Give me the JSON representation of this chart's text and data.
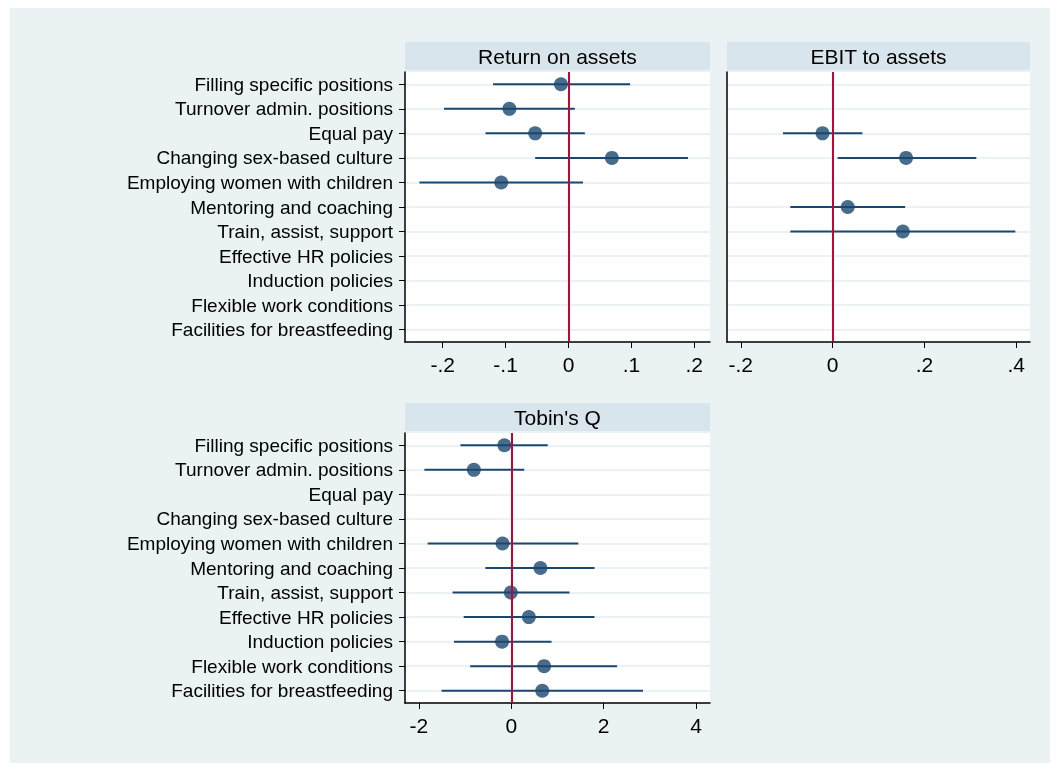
{
  "chart_data": [
    {
      "type": "scatter",
      "title": "Return on assets",
      "orientation": "horizontal",
      "color": "#1a476f",
      "marker": "circle",
      "grid": "y",
      "categories": [
        "Filling specific positions",
        "Turnover admin. positions",
        "Equal pay",
        "Changing sex-based culture",
        "Employing women with children",
        "Mentoring and coaching",
        "Train, assist, support",
        "Effective HR policies",
        "Induction policies",
        "Flexible work conditions",
        "Facilities for breastfeeding"
      ],
      "values": [
        -0.012,
        -0.094,
        -0.053,
        0.069,
        -0.107,
        null,
        null,
        null,
        null,
        null,
        null
      ],
      "errors": [
        [
          -0.12,
          0.098
        ],
        [
          -0.198,
          0.01
        ],
        [
          -0.132,
          0.026
        ],
        [
          -0.053,
          0.19
        ],
        [
          -0.237,
          0.023
        ],
        null,
        null,
        null,
        null,
        null,
        null
      ],
      "xlim": [
        -0.26,
        0.225
      ],
      "xticks": [
        {
          "value": -0.2,
          "label": "-.2"
        },
        {
          "value": -0.1,
          "label": "-.1"
        },
        0,
        {
          "value": 0.1,
          "label": ".1"
        },
        {
          "value": 0.2,
          "label": ".2"
        }
      ],
      "ref_lines": [
        {
          "axis": "x",
          "value": 0,
          "color": "#c10534"
        }
      ]
    },
    {
      "type": "scatter",
      "title": "EBIT to assets",
      "orientation": "horizontal",
      "color": "#1a476f",
      "marker": "circle",
      "grid": "y",
      "tick_labels": "x",
      "categories": [
        null,
        null,
        null,
        null,
        null,
        null,
        null,
        null,
        null,
        null,
        null
      ],
      "values": [
        null,
        null,
        -0.022,
        0.16,
        null,
        0.033,
        0.153,
        null,
        null,
        null,
        null
      ],
      "errors": [
        null,
        null,
        [
          -0.108,
          0.065
        ],
        [
          0.011,
          0.313
        ],
        null,
        [
          -0.092,
          0.158
        ],
        [
          -0.092,
          0.398
        ],
        null,
        null,
        null,
        null
      ],
      "xlim": [
        -0.23,
        0.43
      ],
      "xticks": [
        {
          "value": -0.2,
          "label": "-.2"
        },
        0,
        {
          "value": 0.2,
          "label": ".2"
        },
        {
          "value": 0.4,
          "label": ".4"
        }
      ],
      "ref_lines": [
        {
          "axis": "x",
          "value": 0,
          "color": "#c10534"
        }
      ]
    },
    {
      "type": "scatter",
      "title": "Tobin's Q",
      "orientation": "horizontal",
      "color": "#1a476f",
      "marker": "circle",
      "grid": "y",
      "categories": [
        "Filling specific positions",
        "Turnover admin. positions",
        "Equal pay",
        "Changing sex-based culture",
        "Employing women with children",
        "Mentoring and coaching",
        "Train, assist, support",
        "Effective HR policies",
        "Induction policies",
        "Flexible work conditions",
        "Facilities for breastfeeding"
      ],
      "values": [
        -0.15,
        -0.81,
        null,
        null,
        -0.19,
        0.63,
        -0.01,
        0.38,
        -0.2,
        0.71,
        0.67
      ],
      "errors": [
        [
          -1.1,
          0.79
        ],
        [
          -1.88,
          0.28
        ],
        null,
        null,
        [
          -1.81,
          1.45
        ],
        [
          -0.56,
          1.8
        ],
        [
          -1.27,
          1.26
        ],
        [
          -1.03,
          1.8
        ],
        [
          -1.24,
          0.87
        ],
        [
          -0.89,
          2.29
        ],
        [
          -1.51,
          2.85
        ]
      ],
      "xlim": [
        -2.3,
        4.3
      ],
      "xticks": [
        -2,
        0,
        2,
        4
      ],
      "ref_lines": [
        {
          "axis": "x",
          "value": 0,
          "color": "#c10534"
        }
      ]
    }
  ]
}
